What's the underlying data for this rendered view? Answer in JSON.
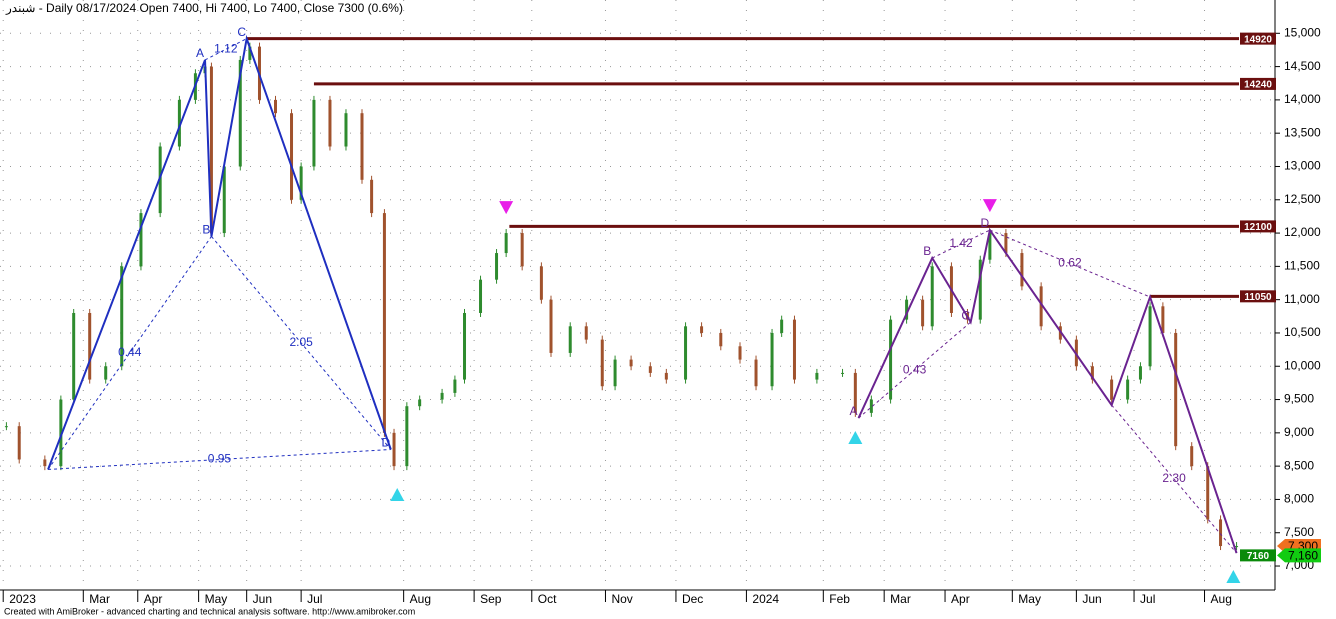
{
  "chart_data": {
    "type": "candlestick",
    "title": "شبندر - Daily 08/17/2024 Open 7400, Hi 7400, Lo 7400, Close 7300 (0.6%)",
    "footer": "Created with AmiBroker - advanced charting and technical analysis software. http://www.amibroker.com",
    "grid": true,
    "up_color": "#2e8b2e",
    "down_color": "#a0522d",
    "xlim": [
      0,
      398
    ],
    "ylim": [
      6640,
      15500
    ],
    "xticks": [
      {
        "value": 1,
        "label": "2023"
      },
      {
        "value": 26,
        "label": "Mar"
      },
      {
        "value": 43,
        "label": "Apr"
      },
      {
        "value": 62,
        "label": "May"
      },
      {
        "value": 77,
        "label": "Jun"
      },
      {
        "value": 94,
        "label": "Jul"
      },
      {
        "value": 126,
        "label": "Aug"
      },
      {
        "value": 148,
        "label": "Sep"
      },
      {
        "value": 166,
        "label": "Oct"
      },
      {
        "value": 189,
        "label": "Nov"
      },
      {
        "value": 211,
        "label": "Dec"
      },
      {
        "value": 233,
        "label": "2024"
      },
      {
        "value": 257,
        "label": "Feb"
      },
      {
        "value": 276,
        "label": "Mar"
      },
      {
        "value": 295,
        "label": "Apr"
      },
      {
        "value": 316,
        "label": "May"
      },
      {
        "value": 336,
        "label": "Jun"
      },
      {
        "value": 354,
        "label": "Jul"
      },
      {
        "value": 376,
        "label": "Aug"
      }
    ],
    "yticks": [
      {
        "value": 7000,
        "label": "7,000"
      },
      {
        "value": 7500,
        "label": "7,500"
      },
      {
        "value": 8000,
        "label": "8,000"
      },
      {
        "value": 8500,
        "label": "8,500"
      },
      {
        "value": 9000,
        "label": "9,000"
      },
      {
        "value": 9500,
        "label": "9,500"
      },
      {
        "value": 10000,
        "label": "10,000"
      },
      {
        "value": 10500,
        "label": "10,500"
      },
      {
        "value": 11000,
        "label": "11,000"
      },
      {
        "value": 11500,
        "label": "11,500"
      },
      {
        "value": 12000,
        "label": "12,000"
      },
      {
        "value": 12500,
        "label": "12,500"
      },
      {
        "value": 13000,
        "label": "13,000"
      },
      {
        "value": 13500,
        "label": "13,500"
      },
      {
        "value": 14000,
        "label": "14,000"
      },
      {
        "value": 14500,
        "label": "14,500"
      },
      {
        "value": 15000,
        "label": "15,000"
      }
    ],
    "close": {
      "x": [
        2,
        6,
        14,
        19,
        23,
        28,
        33,
        38,
        44,
        50,
        56,
        61,
        64,
        66,
        70,
        75,
        78,
        81,
        86,
        91,
        94,
        98,
        103,
        108,
        113,
        116,
        120,
        123,
        127,
        131,
        138,
        142,
        145,
        150,
        155,
        158,
        163,
        169,
        172,
        178,
        183,
        188,
        192,
        197,
        203,
        208,
        214,
        219,
        225,
        231,
        236,
        241,
        244,
        248,
        255,
        263,
        267,
        272,
        278,
        283,
        288,
        291,
        297,
        302,
        306,
        309,
        314,
        319,
        325,
        331,
        336,
        341,
        347,
        352,
        356,
        359,
        363,
        367,
        372,
        377,
        381,
        386
      ],
      "values": [
        9100,
        8600,
        8500,
        9500,
        10800,
        9800,
        10000,
        11500,
        12300,
        13300,
        14000,
        14400,
        14500,
        12000,
        13000,
        14600,
        14800,
        14000,
        13800,
        12500,
        13000,
        14000,
        13300,
        13800,
        12800,
        12300,
        9000,
        8500,
        9400,
        9500,
        9600,
        9800,
        10800,
        11300,
        11700,
        12000,
        11500,
        11000,
        10200,
        10600,
        10400,
        9700,
        10100,
        10000,
        9900,
        9800,
        10600,
        10500,
        10300,
        10100,
        9700,
        10500,
        10700,
        9800,
        9900,
        9900,
        9300,
        9500,
        10700,
        11000,
        10600,
        11500,
        10800,
        10700,
        11600,
        12000,
        11700,
        11200,
        10600,
        10400,
        10000,
        9800,
        9500,
        9800,
        10000,
        10900,
        10500,
        8800,
        8500,
        7700,
        7300,
        7300
      ]
    },
    "levels": [
      {
        "value": 14920,
        "x": 77,
        "color": "#6b0f0f"
      },
      {
        "value": 14240,
        "x": 98,
        "color": "#6b0f0f"
      },
      {
        "value": 12100,
        "x": 159,
        "color": "#6b0f0f"
      },
      {
        "value": 11050,
        "x": 359,
        "color": "#6b0f0f"
      },
      {
        "value": 7160,
        "color": "#0a8a0a"
      }
    ],
    "price_labels": [
      {
        "value": 7300,
        "label": "7,300",
        "color": "#f07020"
      },
      {
        "value": 7160,
        "label": "7,160",
        "color": "#11cc11"
      }
    ],
    "patterns": [
      {
        "color": "#1f2fc0",
        "x": [
          15,
          64,
          66,
          77,
          122
        ],
        "y": [
          8450,
          14600,
          11950,
          14920,
          8750
        ],
        "labels": [
          null,
          "A",
          "B",
          "C",
          "D"
        ],
        "ratios": [
          {
            "label": "0.44",
            "x": [
              15,
              66
            ],
            "y": [
              8450,
              11950
            ]
          },
          {
            "label": "1.12",
            "x": [
              64,
              77
            ],
            "y": [
              14600,
              14920
            ]
          },
          {
            "label": "2.05",
            "x": [
              66,
              122
            ],
            "y": [
              11950,
              8750
            ]
          },
          {
            "label": "0.95",
            "x": [
              15,
              122
            ],
            "y": [
              8450,
              8750
            ]
          }
        ]
      },
      {
        "color": "#6a2390",
        "x": [
          268,
          291,
          303,
          309,
          347,
          359,
          386
        ],
        "y": [
          9222,
          11625,
          10663,
          12045,
          9417,
          11040,
          7195
        ],
        "labels": [
          "A",
          "B",
          "C",
          "D",
          null,
          null,
          null
        ],
        "ratios": [
          {
            "label": "0.43",
            "x": [
              268,
              303
            ],
            "y": [
              9222,
              10663
            ]
          },
          {
            "label": "1.42",
            "x": [
              291,
              309
            ],
            "y": [
              11625,
              12045
            ]
          },
          {
            "label": "0.62",
            "x": [
              309,
              359
            ],
            "y": [
              12045,
              11040
            ]
          },
          {
            "label": "2.30",
            "x": [
              347,
              386
            ],
            "y": [
              9417,
              7195
            ]
          }
        ]
      }
    ],
    "signals": [
      {
        "x": 124,
        "value": 8066,
        "direction": "up",
        "color": "#33d4e8"
      },
      {
        "x": 267,
        "value": 8922,
        "direction": "up",
        "color": "#33d4e8"
      },
      {
        "x": 385,
        "value": 6835,
        "direction": "up",
        "color": "#33d4e8"
      },
      {
        "x": 158,
        "value": 12390,
        "direction": "down",
        "color": "#e81ee8"
      },
      {
        "x": 309,
        "value": 12420,
        "direction": "down",
        "color": "#e81ee8"
      }
    ]
  }
}
